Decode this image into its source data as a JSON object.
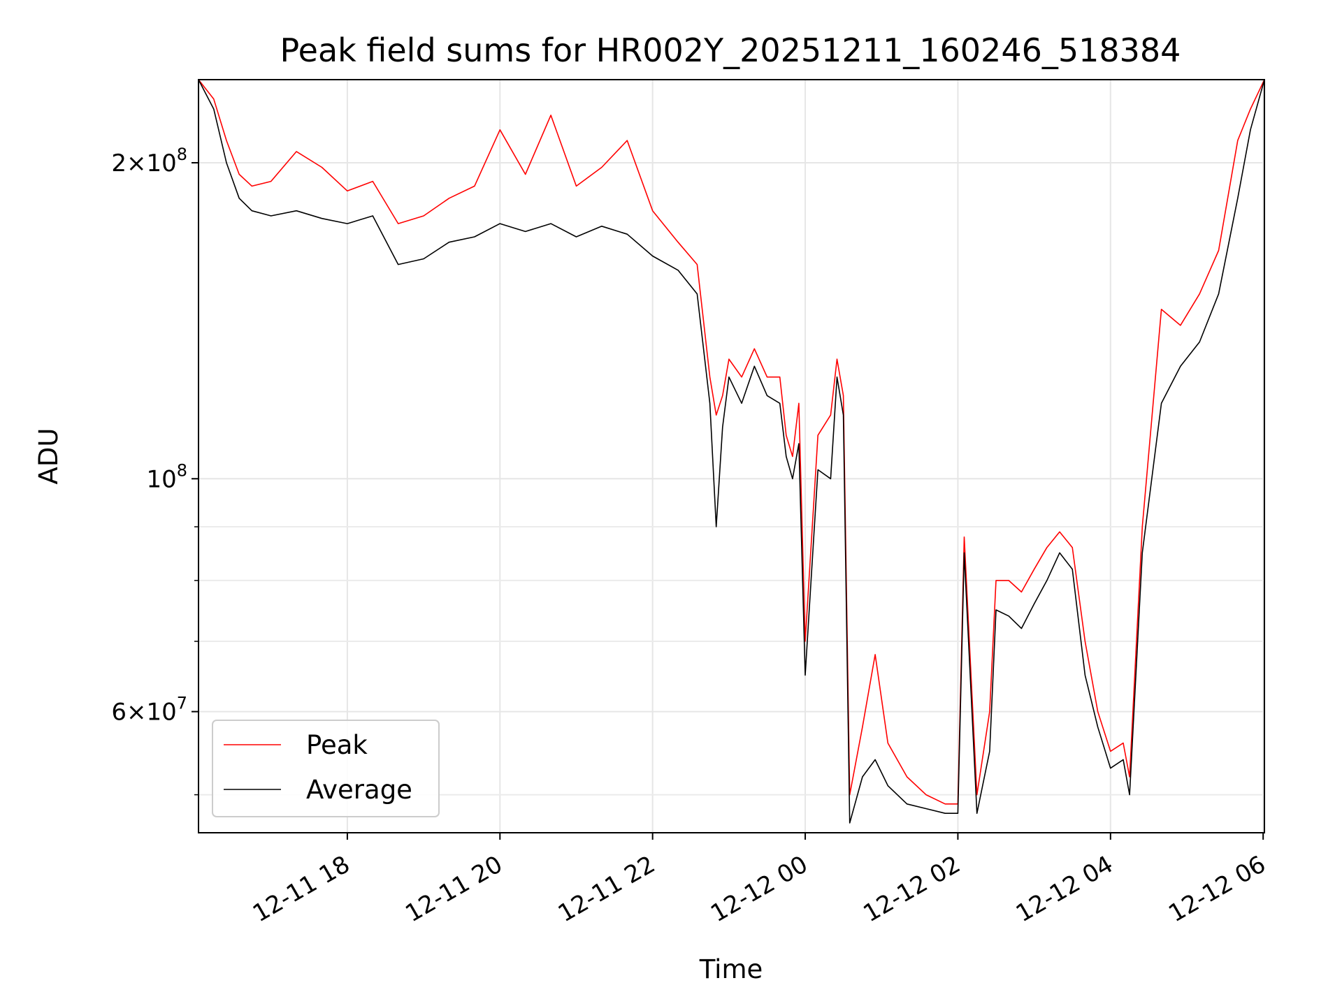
{
  "chart_data": {
    "type": "line",
    "title": "Peak field sums for HR002Y_20251211_160246_518384",
    "xlabel": "Time",
    "ylabel": "ADU",
    "yscale": "log",
    "xlim": [
      "2025-12-11 16:03",
      "2025-12-12 06:01"
    ],
    "ylim": [
      46000000,
      240000000
    ],
    "grid": true,
    "legend_position": "lower-left",
    "x_ticks": [
      {
        "value": "2025-12-11 18:00",
        "label": "12-11 18"
      },
      {
        "value": "2025-12-11 20:00",
        "label": "12-11 20"
      },
      {
        "value": "2025-12-11 22:00",
        "label": "12-11 22"
      },
      {
        "value": "2025-12-12 00:00",
        "label": "12-12 00"
      },
      {
        "value": "2025-12-12 02:00",
        "label": "12-12 02"
      },
      {
        "value": "2025-12-12 04:00",
        "label": "12-12 04"
      },
      {
        "value": "2025-12-12 06:00",
        "label": "12-12 06"
      }
    ],
    "y_ticks": [
      {
        "value": 200000000,
        "base": "2×10",
        "exp": "8"
      },
      {
        "value": 100000000,
        "base": "10",
        "exp": "8"
      },
      {
        "value": 60000000,
        "base": "6×10",
        "exp": "7"
      }
    ],
    "y_minor_ticks": [
      50000000,
      70000000,
      80000000,
      90000000
    ],
    "x": [
      "2025-12-11 16:03",
      "2025-12-11 16:15",
      "2025-12-11 16:25",
      "2025-12-11 16:35",
      "2025-12-11 16:45",
      "2025-12-11 17:00",
      "2025-12-11 17:20",
      "2025-12-11 17:40",
      "2025-12-11 18:00",
      "2025-12-11 18:20",
      "2025-12-11 18:40",
      "2025-12-11 19:00",
      "2025-12-11 19:20",
      "2025-12-11 19:40",
      "2025-12-11 20:00",
      "2025-12-11 20:20",
      "2025-12-11 20:40",
      "2025-12-11 21:00",
      "2025-12-11 21:20",
      "2025-12-11 21:40",
      "2025-12-11 22:00",
      "2025-12-11 22:20",
      "2025-12-11 22:35",
      "2025-12-11 22:45",
      "2025-12-11 22:50",
      "2025-12-11 22:55",
      "2025-12-11 23:00",
      "2025-12-11 23:10",
      "2025-12-11 23:20",
      "2025-12-11 23:30",
      "2025-12-11 23:40",
      "2025-12-11 23:45",
      "2025-12-11 23:50",
      "2025-12-11 23:55",
      "2025-12-12 00:00",
      "2025-12-12 00:10",
      "2025-12-12 00:20",
      "2025-12-12 00:25",
      "2025-12-12 00:30",
      "2025-12-12 00:35",
      "2025-12-12 00:45",
      "2025-12-12 00:55",
      "2025-12-12 01:05",
      "2025-12-12 01:20",
      "2025-12-12 01:35",
      "2025-12-12 01:50",
      "2025-12-12 02:00",
      "2025-12-12 02:05",
      "2025-12-12 02:15",
      "2025-12-12 02:25",
      "2025-12-12 02:30",
      "2025-12-12 02:40",
      "2025-12-12 02:50",
      "2025-12-12 03:00",
      "2025-12-12 03:10",
      "2025-12-12 03:20",
      "2025-12-12 03:30",
      "2025-12-12 03:40",
      "2025-12-12 03:50",
      "2025-12-12 04:00",
      "2025-12-12 04:10",
      "2025-12-12 04:15",
      "2025-12-12 04:25",
      "2025-12-12 04:40",
      "2025-12-12 04:55",
      "2025-12-12 05:10",
      "2025-12-12 05:25",
      "2025-12-12 05:40",
      "2025-12-12 05:50",
      "2025-12-12 06:01"
    ],
    "series": [
      {
        "name": "Peak",
        "color": "#ff0000",
        "values": [
          240000000,
          230000000,
          210000000,
          195000000,
          190000000,
          192000000,
          205000000,
          198000000,
          188000000,
          192000000,
          175000000,
          178000000,
          185000000,
          190000000,
          215000000,
          195000000,
          222000000,
          190000000,
          198000000,
          210000000,
          180000000,
          168000000,
          160000000,
          125000000,
          115000000,
          120000000,
          130000000,
          125000000,
          133000000,
          125000000,
          125000000,
          110000000,
          105000000,
          118000000,
          70000000,
          110000000,
          115000000,
          130000000,
          120000000,
          50000000,
          58000000,
          68000000,
          56000000,
          52000000,
          50000000,
          49000000,
          49000000,
          88000000,
          50000000,
          60000000,
          80000000,
          80000000,
          78000000,
          82000000,
          86000000,
          89000000,
          86000000,
          70000000,
          60000000,
          55000000,
          56000000,
          52000000,
          90000000,
          145000000,
          140000000,
          150000000,
          165000000,
          210000000,
          225000000,
          240000000
        ]
      },
      {
        "name": "Average",
        "color": "#000000",
        "values": [
          240000000,
          225000000,
          200000000,
          185000000,
          180000000,
          178000000,
          180000000,
          177000000,
          175000000,
          178000000,
          160000000,
          162000000,
          168000000,
          170000000,
          175000000,
          172000000,
          175000000,
          170000000,
          174000000,
          171000000,
          163000000,
          158000000,
          150000000,
          118000000,
          90000000,
          112000000,
          125000000,
          118000000,
          128000000,
          120000000,
          118000000,
          105000000,
          100000000,
          108000000,
          65000000,
          102000000,
          100000000,
          125000000,
          115000000,
          47000000,
          52000000,
          54000000,
          51000000,
          49000000,
          48500000,
          48000000,
          48000000,
          85000000,
          48000000,
          55000000,
          75000000,
          74000000,
          72000000,
          76000000,
          80000000,
          85000000,
          82000000,
          65000000,
          58000000,
          53000000,
          54000000,
          50000000,
          85000000,
          118000000,
          128000000,
          135000000,
          150000000,
          185000000,
          215000000,
          240000000
        ]
      }
    ]
  }
}
